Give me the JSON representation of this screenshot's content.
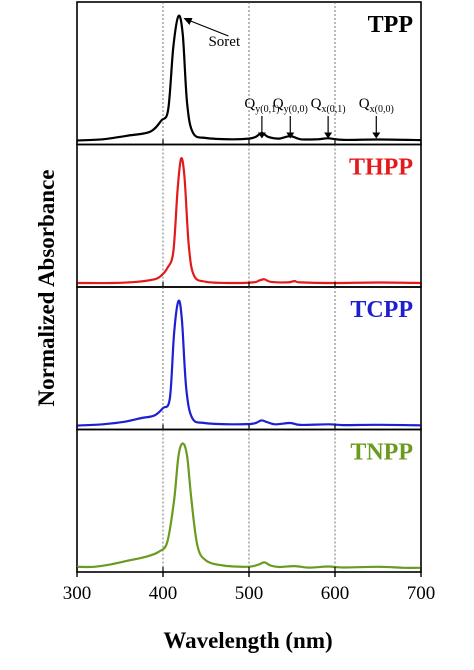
{
  "chart_data": {
    "type": "line",
    "xlabel": "Wavelength (nm)",
    "ylabel": "Normalized Absorbance",
    "xlim": [
      300,
      700
    ],
    "x_ticks": [
      "300",
      "400",
      "500",
      "600",
      "700"
    ],
    "reference_lines_x": [
      400,
      500,
      600
    ],
    "grid": false,
    "panels": [
      {
        "label": "TPP",
        "color": "#000000",
        "points": [
          [
            300,
            0.0
          ],
          [
            330,
            0.01
          ],
          [
            360,
            0.04
          ],
          [
            385,
            0.07
          ],
          [
            398,
            0.16
          ],
          [
            406,
            0.25
          ],
          [
            412,
            0.75
          ],
          [
            418,
            1.0
          ],
          [
            423,
            0.85
          ],
          [
            428,
            0.3
          ],
          [
            435,
            0.06
          ],
          [
            450,
            0.02
          ],
          [
            480,
            0.01
          ],
          [
            500,
            0.015
          ],
          [
            508,
            0.03
          ],
          [
            515,
            0.06
          ],
          [
            522,
            0.03
          ],
          [
            535,
            0.015
          ],
          [
            548,
            0.035
          ],
          [
            560,
            0.01
          ],
          [
            580,
            0.01
          ],
          [
            592,
            0.018
          ],
          [
            610,
            0.005
          ],
          [
            648,
            0.008
          ],
          [
            700,
            0.003
          ]
        ],
        "annotations": [
          {
            "main": "Soret",
            "sub": "",
            "x": 418
          },
          {
            "main": "Q",
            "sub": "y(0,1)",
            "x": 515
          },
          {
            "main": "Q",
            "sub": "y(0,0)",
            "x": 548
          },
          {
            "main": "Q",
            "sub": "x(0,1)",
            "x": 592
          },
          {
            "main": "Q",
            "sub": "x(0,0)",
            "x": 648
          }
        ]
      },
      {
        "label": "THPP",
        "color": "#e31a1c",
        "points": [
          [
            300,
            0.0
          ],
          [
            340,
            0.0
          ],
          [
            370,
            0.01
          ],
          [
            390,
            0.03
          ],
          [
            398,
            0.06
          ],
          [
            405,
            0.12
          ],
          [
            412,
            0.25
          ],
          [
            417,
            0.75
          ],
          [
            421,
            1.0
          ],
          [
            425,
            0.85
          ],
          [
            430,
            0.3
          ],
          [
            436,
            0.06
          ],
          [
            450,
            0.01
          ],
          [
            480,
            0.0
          ],
          [
            505,
            0.005
          ],
          [
            512,
            0.02
          ],
          [
            518,
            0.03
          ],
          [
            525,
            0.01
          ],
          [
            545,
            0.005
          ],
          [
            553,
            0.015
          ],
          [
            560,
            0.005
          ],
          [
            600,
            0.0
          ],
          [
            650,
            0.004
          ],
          [
            700,
            0.0
          ]
        ],
        "annotations": []
      },
      {
        "label": "TCPP",
        "color": "#1f1fd0",
        "points": [
          [
            300,
            0.0
          ],
          [
            330,
            0.01
          ],
          [
            355,
            0.03
          ],
          [
            375,
            0.06
          ],
          [
            390,
            0.08
          ],
          [
            400,
            0.14
          ],
          [
            408,
            0.22
          ],
          [
            413,
            0.75
          ],
          [
            418,
            1.0
          ],
          [
            422,
            0.85
          ],
          [
            427,
            0.3
          ],
          [
            434,
            0.06
          ],
          [
            448,
            0.02
          ],
          [
            480,
            0.01
          ],
          [
            505,
            0.015
          ],
          [
            514,
            0.04
          ],
          [
            520,
            0.03
          ],
          [
            530,
            0.01
          ],
          [
            548,
            0.02
          ],
          [
            560,
            0.005
          ],
          [
            593,
            0.01
          ],
          [
            610,
            0.003
          ],
          [
            648,
            0.006
          ],
          [
            700,
            0.002
          ]
        ],
        "annotations": []
      },
      {
        "label": "TNPP",
        "color": "#6a9a20",
        "points": [
          [
            300,
            0.01
          ],
          [
            320,
            0.01
          ],
          [
            340,
            0.03
          ],
          [
            360,
            0.06
          ],
          [
            380,
            0.09
          ],
          [
            395,
            0.13
          ],
          [
            405,
            0.21
          ],
          [
            413,
            0.55
          ],
          [
            418,
            0.9
          ],
          [
            423,
            1.0
          ],
          [
            428,
            0.9
          ],
          [
            433,
            0.55
          ],
          [
            440,
            0.18
          ],
          [
            450,
            0.06
          ],
          [
            470,
            0.02
          ],
          [
            495,
            0.01
          ],
          [
            505,
            0.015
          ],
          [
            512,
            0.03
          ],
          [
            518,
            0.045
          ],
          [
            525,
            0.02
          ],
          [
            535,
            0.008
          ],
          [
            553,
            0.015
          ],
          [
            570,
            0.003
          ],
          [
            592,
            0.012
          ],
          [
            610,
            0.004
          ],
          [
            650,
            0.01
          ],
          [
            680,
            0.002
          ],
          [
            700,
            0.002
          ]
        ],
        "annotations": []
      }
    ]
  }
}
